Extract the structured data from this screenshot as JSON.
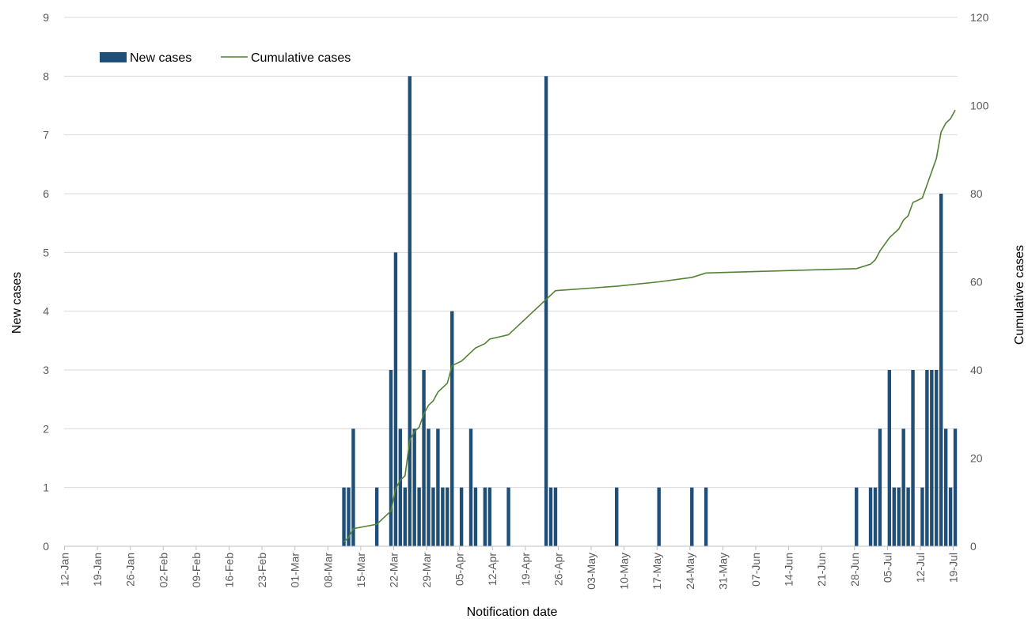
{
  "chart_data": {
    "type": "bar",
    "title": "",
    "xlabel": "Notification date",
    "ylabel": "New cases",
    "y2label": "Cumulative cases",
    "ylim": [
      0,
      9
    ],
    "y2lim": [
      0,
      120
    ],
    "yticks": [
      "0",
      "1",
      "2",
      "3",
      "4",
      "5",
      "6",
      "7",
      "8",
      "9"
    ],
    "y2ticks": [
      "0",
      "20",
      "40",
      "60",
      "80",
      "100",
      "120"
    ],
    "x_tick_labels": [
      "12-Jan",
      "19-Jan",
      "26-Jan",
      "02-Feb",
      "09-Feb",
      "16-Feb",
      "23-Feb",
      "01-Mar",
      "08-Mar",
      "15-Mar",
      "22-Mar",
      "29-Mar",
      "05-Apr",
      "12-Apr",
      "19-Apr",
      "26-Apr",
      "03-May",
      "10-May",
      "17-May",
      "24-May",
      "31-May",
      "07-Jun",
      "14-Jun",
      "21-Jun",
      "28-Jun",
      "05-Jul",
      "12-Jul",
      "19-Jul"
    ],
    "x_range": [
      "12-Jan",
      "19-Jul"
    ],
    "grid": true,
    "legend_position": "top-left",
    "colors": {
      "bars": "#1f4e79",
      "line": "#548235",
      "grid": "#d9d9d9",
      "axis": "#bfbfbf"
    },
    "series": [
      {
        "name": "New cases",
        "type": "bar",
        "axis": "left",
        "points": [
          {
            "date": "11-Mar",
            "value": 1
          },
          {
            "date": "12-Mar",
            "value": 1
          },
          {
            "date": "13-Mar",
            "value": 2
          },
          {
            "date": "18-Mar",
            "value": 1
          },
          {
            "date": "21-Mar",
            "value": 3
          },
          {
            "date": "22-Mar",
            "value": 5
          },
          {
            "date": "23-Mar",
            "value": 2
          },
          {
            "date": "24-Mar",
            "value": 1
          },
          {
            "date": "25-Mar",
            "value": 8
          },
          {
            "date": "26-Mar",
            "value": 2
          },
          {
            "date": "27-Mar",
            "value": 1
          },
          {
            "date": "28-Mar",
            "value": 3
          },
          {
            "date": "29-Mar",
            "value": 2
          },
          {
            "date": "30-Mar",
            "value": 1
          },
          {
            "date": "31-Mar",
            "value": 2
          },
          {
            "date": "01-Apr",
            "value": 1
          },
          {
            "date": "02-Apr",
            "value": 1
          },
          {
            "date": "03-Apr",
            "value": 4
          },
          {
            "date": "05-Apr",
            "value": 1
          },
          {
            "date": "07-Apr",
            "value": 2
          },
          {
            "date": "08-Apr",
            "value": 1
          },
          {
            "date": "10-Apr",
            "value": 1
          },
          {
            "date": "11-Apr",
            "value": 1
          },
          {
            "date": "15-Apr",
            "value": 1
          },
          {
            "date": "23-Apr",
            "value": 8
          },
          {
            "date": "24-Apr",
            "value": 1
          },
          {
            "date": "25-Apr",
            "value": 1
          },
          {
            "date": "08-May",
            "value": 1
          },
          {
            "date": "17-May",
            "value": 1
          },
          {
            "date": "24-May",
            "value": 1
          },
          {
            "date": "27-May",
            "value": 1
          },
          {
            "date": "28-Jun",
            "value": 1
          },
          {
            "date": "01-Jul",
            "value": 1
          },
          {
            "date": "02-Jul",
            "value": 1
          },
          {
            "date": "03-Jul",
            "value": 2
          },
          {
            "date": "05-Jul",
            "value": 3
          },
          {
            "date": "06-Jul",
            "value": 1
          },
          {
            "date": "07-Jul",
            "value": 1
          },
          {
            "date": "08-Jul",
            "value": 2
          },
          {
            "date": "09-Jul",
            "value": 1
          },
          {
            "date": "10-Jul",
            "value": 3
          },
          {
            "date": "12-Jul",
            "value": 1
          },
          {
            "date": "13-Jul",
            "value": 3
          },
          {
            "date": "14-Jul",
            "value": 3
          },
          {
            "date": "15-Jul",
            "value": 3
          },
          {
            "date": "16-Jul",
            "value": 6
          },
          {
            "date": "17-Jul",
            "value": 2
          },
          {
            "date": "18-Jul",
            "value": 1
          },
          {
            "date": "19-Jul",
            "value": 2
          }
        ]
      },
      {
        "name": "Cumulative cases",
        "type": "line",
        "axis": "right",
        "points": [
          {
            "date": "11-Mar",
            "value": 1
          },
          {
            "date": "12-Mar",
            "value": 2
          },
          {
            "date": "13-Mar",
            "value": 4
          },
          {
            "date": "18-Mar",
            "value": 5
          },
          {
            "date": "21-Mar",
            "value": 8
          },
          {
            "date": "22-Mar",
            "value": 13
          },
          {
            "date": "23-Mar",
            "value": 15
          },
          {
            "date": "24-Mar",
            "value": 16
          },
          {
            "date": "25-Mar",
            "value": 24
          },
          {
            "date": "26-Mar",
            "value": 26
          },
          {
            "date": "27-Mar",
            "value": 27
          },
          {
            "date": "28-Mar",
            "value": 30
          },
          {
            "date": "29-Mar",
            "value": 32
          },
          {
            "date": "30-Mar",
            "value": 33
          },
          {
            "date": "31-Mar",
            "value": 35
          },
          {
            "date": "01-Apr",
            "value": 36
          },
          {
            "date": "02-Apr",
            "value": 37
          },
          {
            "date": "03-Apr",
            "value": 41
          },
          {
            "date": "05-Apr",
            "value": 42
          },
          {
            "date": "07-Apr",
            "value": 44
          },
          {
            "date": "08-Apr",
            "value": 45
          },
          {
            "date": "10-Apr",
            "value": 46
          },
          {
            "date": "11-Apr",
            "value": 47
          },
          {
            "date": "15-Apr",
            "value": 48
          },
          {
            "date": "23-Apr",
            "value": 56
          },
          {
            "date": "24-Apr",
            "value": 57
          },
          {
            "date": "25-Apr",
            "value": 58
          },
          {
            "date": "08-May",
            "value": 59
          },
          {
            "date": "17-May",
            "value": 60
          },
          {
            "date": "24-May",
            "value": 61
          },
          {
            "date": "27-May",
            "value": 62
          },
          {
            "date": "28-Jun",
            "value": 63
          },
          {
            "date": "01-Jul",
            "value": 64
          },
          {
            "date": "02-Jul",
            "value": 65
          },
          {
            "date": "03-Jul",
            "value": 67
          },
          {
            "date": "05-Jul",
            "value": 70
          },
          {
            "date": "06-Jul",
            "value": 71
          },
          {
            "date": "07-Jul",
            "value": 72
          },
          {
            "date": "08-Jul",
            "value": 74
          },
          {
            "date": "09-Jul",
            "value": 75
          },
          {
            "date": "10-Jul",
            "value": 78
          },
          {
            "date": "12-Jul",
            "value": 79
          },
          {
            "date": "13-Jul",
            "value": 82
          },
          {
            "date": "14-Jul",
            "value": 85
          },
          {
            "date": "15-Jul",
            "value": 88
          },
          {
            "date": "16-Jul",
            "value": 94
          },
          {
            "date": "17-Jul",
            "value": 96
          },
          {
            "date": "18-Jul",
            "value": 97
          },
          {
            "date": "19-Jul",
            "value": 99
          }
        ]
      }
    ]
  }
}
